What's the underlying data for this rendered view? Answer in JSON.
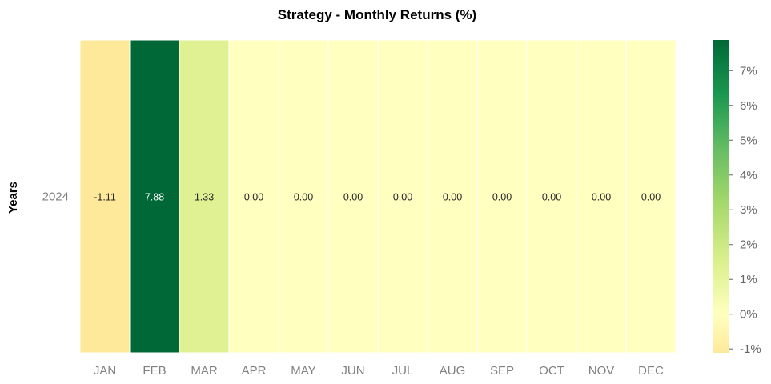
{
  "chart_data": {
    "type": "heatmap",
    "title": "Strategy - Monthly Returns (%)",
    "ylabel": "Years",
    "xlabel": "",
    "rows": [
      "2024"
    ],
    "columns": [
      "JAN",
      "FEB",
      "MAR",
      "APR",
      "MAY",
      "JUN",
      "JUL",
      "AUG",
      "SEP",
      "OCT",
      "NOV",
      "DEC"
    ],
    "values": [
      [
        -1.11,
        7.88,
        1.33,
        0.0,
        0.0,
        0.0,
        0.0,
        0.0,
        0.0,
        0.0,
        0.0,
        0.0
      ]
    ],
    "value_labels": [
      [
        "-1.11",
        "7.88",
        "1.33",
        "0.00",
        "0.00",
        "0.00",
        "0.00",
        "0.00",
        "0.00",
        "0.00",
        "0.00",
        "0.00"
      ]
    ],
    "colorbar": {
      "vmin": -1.11,
      "vmax": 7.88,
      "center": 0,
      "ticks": [
        -1,
        0,
        1,
        2,
        3,
        4,
        5,
        6,
        7
      ],
      "tick_labels": [
        "-1%",
        "0%",
        "1%",
        "2%",
        "3%",
        "4%",
        "5%",
        "6%",
        "7%"
      ],
      "colormap": "RdYlGn",
      "position": "right"
    },
    "grid": false
  }
}
